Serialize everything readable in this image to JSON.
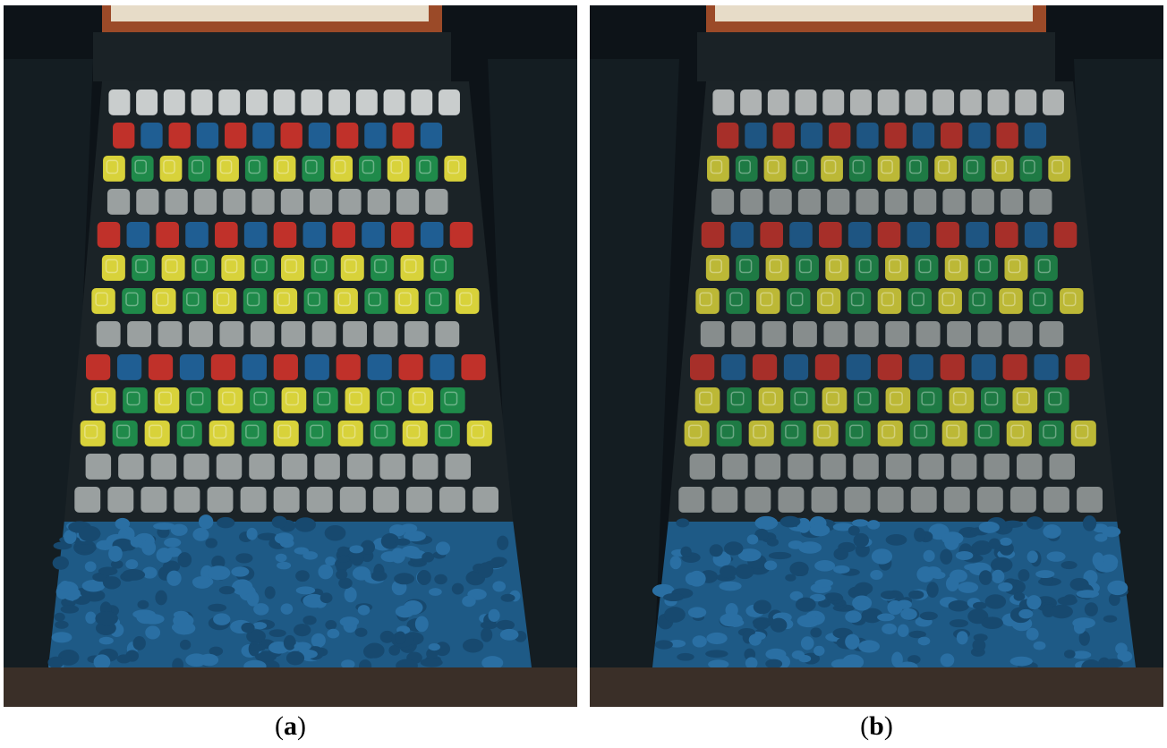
{
  "figure": {
    "panels": [
      {
        "id": "a",
        "letter": "a",
        "content": "photo-armour-blocks-before-test",
        "block_rows": [
          "gray",
          "red",
          "yellow",
          "gray",
          "red",
          "yellow",
          "green",
          "gray",
          "red",
          "yellow",
          "green",
          "gray",
          "gray"
        ],
        "toe": "blue-rock-rubble"
      },
      {
        "id": "b",
        "letter": "b",
        "content": "photo-armour-blocks-after-test",
        "block_rows": [
          "gray",
          "red",
          "yellow",
          "gray",
          "red",
          "yellow",
          "green",
          "gray",
          "red",
          "yellow",
          "green",
          "gray",
          "gray"
        ],
        "toe": "blue-rock-rubble"
      }
    ]
  },
  "palette": {
    "gray": "#9aa0a0",
    "gray_top": "#c9cdcd",
    "red": "#c0312a",
    "blue": "#1f5e93",
    "yellow": "#d8d23a",
    "green": "#1f8a4a",
    "rubble": "#1e5a86",
    "frame": "#b5552c",
    "background": "#0d1318"
  },
  "captions": [
    {
      "open": "(",
      "letter": "a",
      "close": ")"
    },
    {
      "open": "(",
      "letter": "b",
      "close": ")"
    }
  ]
}
